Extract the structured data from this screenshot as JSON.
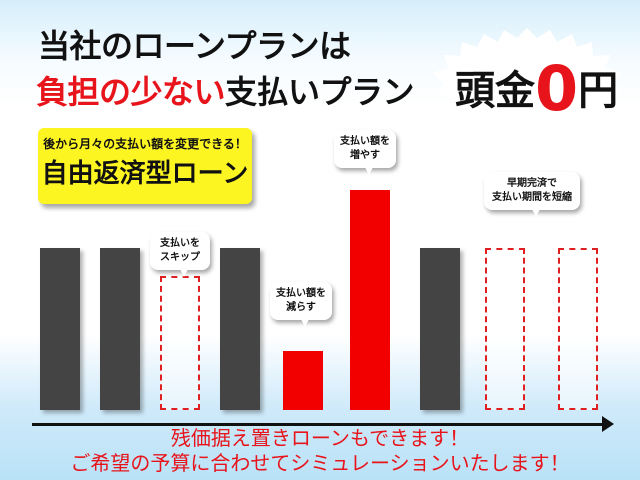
{
  "headline": {
    "line1": "当社のローンプランは",
    "line2_red": "負担の少ない",
    "line2_black": "支払いプラン"
  },
  "badge": {
    "prefix": "頭金",
    "zero": "0",
    "suffix": "円"
  },
  "feature_box": {
    "subtitle": "後から月々の支払い額を変更できる！",
    "title": "自由返済型ローン"
  },
  "callouts": {
    "skip": [
      "支払いを",
      "スキップ"
    ],
    "reduce": [
      "支払い額を",
      "減らす"
    ],
    "increase": [
      "支払い額を",
      "増やす"
    ],
    "shorten": [
      "早期完済で",
      "支払い期間を短縮"
    ]
  },
  "footer": {
    "line1": "残価据え置きローンもできます！",
    "line2": "ご希望の予算に合わせてシミュレーションいたします！"
  },
  "colors": {
    "accent_red": "#e8141b",
    "bar_gray": "#444444",
    "highlight_yellow": "#fdf522"
  }
}
